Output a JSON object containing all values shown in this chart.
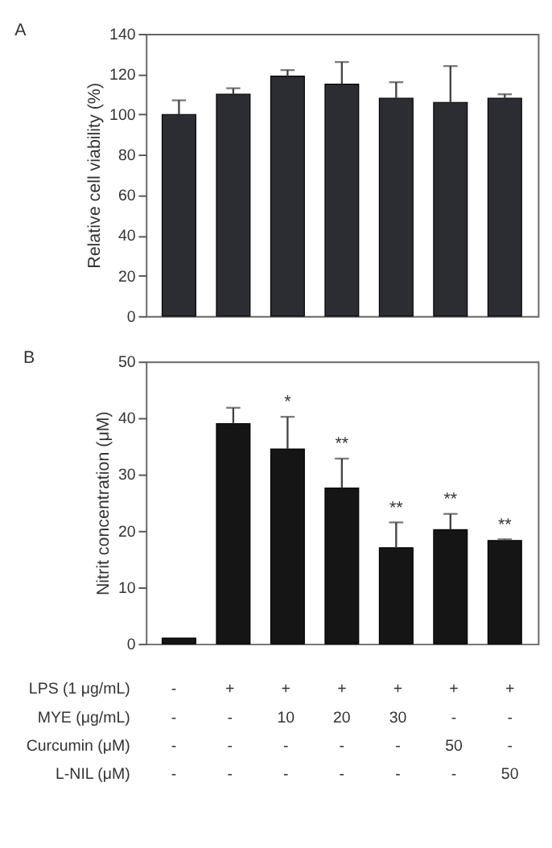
{
  "chart_data": [
    {
      "type": "bar",
      "title": "A",
      "ylabel": "Relative cell viability (%)",
      "categories": [
        null,
        null,
        null,
        null,
        null,
        null,
        null
      ],
      "values": [
        100,
        110,
        119,
        115,
        108,
        106,
        108
      ],
      "errors": [
        [
          100,
          107
        ],
        [
          110,
          113
        ],
        [
          119,
          122
        ],
        [
          115,
          126
        ],
        [
          108,
          116
        ],
        [
          106,
          124
        ],
        [
          108,
          110
        ]
      ],
      "color": "#2b2d33",
      "ylim": [
        0,
        140
      ],
      "yticks": [
        0,
        20,
        40,
        60,
        80,
        100,
        120,
        140
      ],
      "grid": false,
      "tick_labels": "y"
    },
    {
      "type": "bar",
      "title": "B",
      "ylabel": "Nitrit concentration (μM)",
      "categories": [
        null,
        null,
        null,
        null,
        null,
        null,
        null
      ],
      "values": [
        1,
        39,
        34.5,
        27.6,
        17,
        20.2,
        18.3
      ],
      "errors": [
        null,
        [
          39,
          41.8
        ],
        [
          34.5,
          40.2
        ],
        [
          27.6,
          32.8
        ],
        [
          17,
          21.5
        ],
        [
          20.2,
          23
        ],
        [
          18.3,
          18.5
        ]
      ],
      "value_labels": [
        null,
        null,
        "*",
        "**",
        "**",
        "**",
        "**"
      ],
      "color": "#151515",
      "ylim": [
        0,
        50
      ],
      "yticks": [
        0,
        10,
        20,
        30,
        40,
        50
      ],
      "grid": false,
      "tick_labels": "y",
      "annotations": [
        "LPS (1 μg/mL)",
        "-",
        "+",
        "+",
        "+",
        "+",
        "+",
        "+",
        "MYE (μg/mL)",
        "-",
        "-",
        "10",
        "20",
        "30",
        "-",
        "-",
        "Curcumin (μM)",
        "-",
        "-",
        "-",
        "-",
        "-",
        "50",
        "-",
        "L-NIL (μM)",
        "-",
        "-",
        "-",
        "-",
        "-",
        "-",
        "50"
      ]
    }
  ]
}
